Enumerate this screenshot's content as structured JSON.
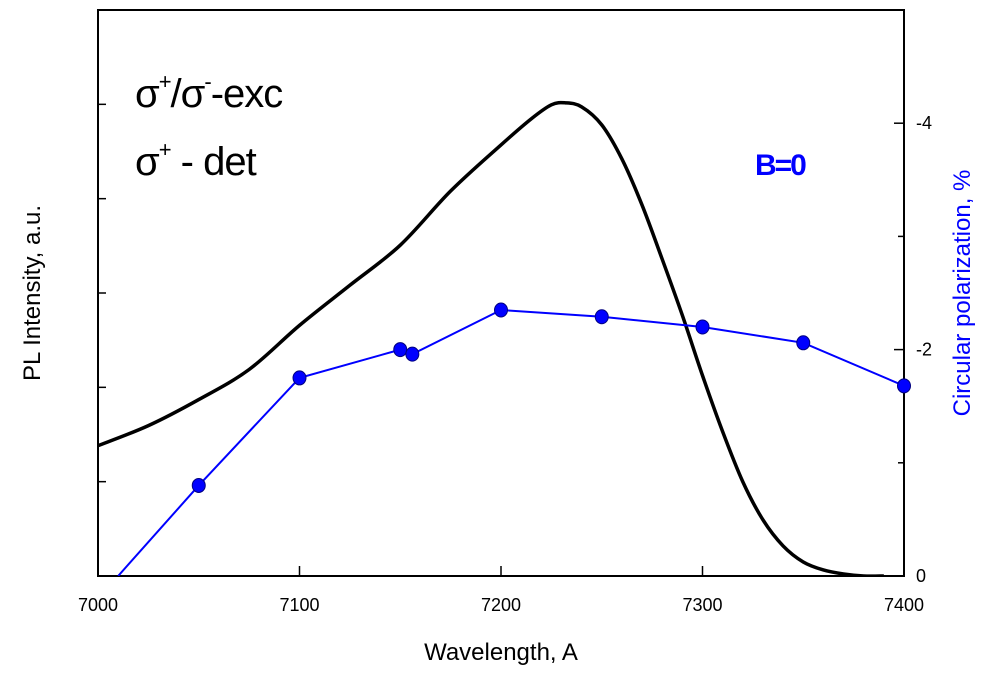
{
  "chart_data": {
    "type": "line",
    "xlabel": "Wavelength, A",
    "ylabel": "PL Intensity, a.u.",
    "y2label": "Circular polarization, %",
    "xlim": [
      7000,
      7400
    ],
    "xticks": [
      7000,
      7100,
      7200,
      7300,
      7400
    ],
    "xtick_labels": [
      "7000",
      "7100",
      "7200",
      "7300",
      "7400"
    ],
    "y2lim": [
      0,
      -5
    ],
    "y2ticks": [
      0,
      -2,
      -4
    ],
    "y2tick_labels": [
      "0",
      "-2",
      "-4"
    ],
    "y2_minor_ticks": [
      -1,
      -3
    ],
    "y_minor_tick_count": 5,
    "grid": false,
    "series": [
      {
        "axis": "left",
        "color": "#000000",
        "marker": "none",
        "x": [
          7000,
          7025,
          7050,
          7075,
          7100,
          7125,
          7150,
          7175,
          7200,
          7215,
          7225,
          7232,
          7240,
          7250,
          7260,
          7270,
          7280,
          7290,
          7300,
          7310,
          7320,
          7330,
          7340,
          7350,
          7360,
          7370,
          7380,
          7390
        ],
        "values": [
          0.65,
          0.75,
          0.88,
          1.03,
          1.25,
          1.45,
          1.65,
          1.92,
          2.15,
          2.28,
          2.35,
          2.36,
          2.34,
          2.25,
          2.08,
          1.85,
          1.58,
          1.3,
          1.0,
          0.72,
          0.47,
          0.28,
          0.15,
          0.07,
          0.03,
          0.01,
          0.0,
          0.0
        ]
      },
      {
        "axis": "right",
        "color": "#0000ff",
        "marker": "circle",
        "x": [
          7010,
          7050,
          7100,
          7150,
          7156,
          7200,
          7250,
          7300,
          7350,
          7400
        ],
        "values": [
          0,
          -0.8,
          -1.75,
          -2.0,
          -1.96,
          -2.35,
          -2.29,
          -2.2,
          -2.06,
          -1.68
        ]
      }
    ],
    "annotations": [
      {
        "text": "σ",
        "sup": "+",
        "text2": "/σ",
        "sup2": "-",
        "text3": "-exc"
      },
      {
        "text": "σ",
        "sup": "+",
        "text2": " - det"
      },
      {
        "text": "B=0"
      }
    ]
  }
}
